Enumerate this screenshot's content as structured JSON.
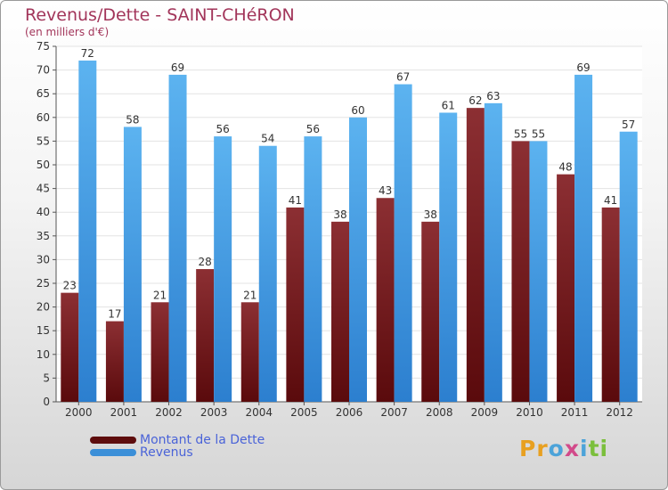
{
  "header": {
    "title": "Revenus/Dette - SAINT-CHéRON",
    "subtitle": "(en milliers d'€)"
  },
  "chart_data": {
    "type": "bar",
    "categories": [
      "2000",
      "2001",
      "2002",
      "2003",
      "2004",
      "2005",
      "2006",
      "2007",
      "2008",
      "2009",
      "2010",
      "2011",
      "2012"
    ],
    "series": [
      {
        "name": "Montant de la Dette",
        "values": [
          23,
          17,
          21,
          28,
          21,
          41,
          38,
          43,
          38,
          62,
          55,
          48,
          41
        ],
        "color": "#7a2327"
      },
      {
        "name": "Revenus",
        "values": [
          72,
          58,
          69,
          56,
          54,
          56,
          60,
          67,
          61,
          63,
          55,
          69,
          57
        ],
        "color": "#4aa3e6"
      }
    ],
    "ylim": [
      0,
      75
    ],
    "yticks": [
      0,
      5,
      10,
      15,
      20,
      25,
      30,
      35,
      40,
      45,
      50,
      55,
      60,
      65,
      70,
      75
    ],
    "grid": true,
    "legend_position": "bottom-left",
    "title": "Revenus/Dette - SAINT-CHéRON",
    "ylabel": "(en milliers d'€)"
  },
  "legend": {
    "items": [
      {
        "label": "Montant de la Dette",
        "color": "#5e0d0d"
      },
      {
        "label": "Revenus",
        "color": "#3b8fd8"
      }
    ]
  },
  "logo": {
    "letters": [
      "P",
      "r",
      "o",
      "x",
      "i",
      "t",
      "i"
    ],
    "colors": [
      "#e8a020",
      "#e8a020",
      "#4ca3d9",
      "#d24a8a",
      "#4ca3d9",
      "#7bbf3c",
      "#7bbf3c"
    ]
  }
}
